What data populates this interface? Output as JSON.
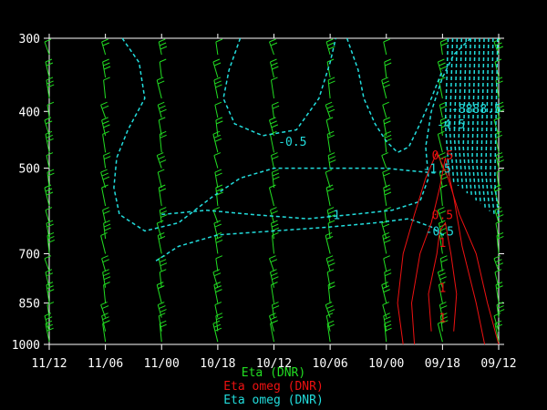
{
  "chart_data": {
    "type": "line",
    "title": "",
    "xlabel": "",
    "ylabel": "",
    "x_ticks": [
      "11/12",
      "11/06",
      "11/00",
      "10/18",
      "10/12",
      "10/06",
      "10/00",
      "09/18",
      "09/12"
    ],
    "y_ticks": [
      300,
      400,
      500,
      700,
      850,
      1000
    ],
    "y_scale": "log-pressure",
    "y_range": [
      300,
      1000
    ],
    "legend": [
      {
        "name": "Eta  (DNR)",
        "color": "#22dd22"
      },
      {
        "name": "Eta omeg (DNR)",
        "color": "#ee1111"
      },
      {
        "name": "Eta omeg (DNR)",
        "color": "#22dddd"
      }
    ],
    "contour_labels": [
      {
        "text": "-0.5",
        "x": 4.33,
        "p": 450,
        "color": "#22dddd"
      },
      {
        "text": "-1.5",
        "x": 6.9,
        "p": 500,
        "color": "#22dddd"
      },
      {
        "text": "-1",
        "x": 5.05,
        "p": 600,
        "color": "#22dddd"
      },
      {
        "text": "-0.5",
        "x": 6.95,
        "p": 640,
        "color": "#22dddd"
      },
      {
        "text": "-4.5",
        "x": 7.15,
        "p": 420,
        "color": "#22dddd"
      },
      {
        "text": "-8888.5",
        "x": 7.6,
        "p": 395,
        "color": "#22dddd"
      },
      {
        "text": "0.5",
        "x": 7.0,
        "p": 475,
        "color": "#ee1111"
      },
      {
        "text": "0.5",
        "x": 7.0,
        "p": 600,
        "color": "#ee1111"
      },
      {
        "text": "1",
        "x": 7.0,
        "p": 670,
        "color": "#ee1111"
      },
      {
        "text": "1",
        "x": 7.0,
        "p": 800,
        "color": "#ee1111"
      },
      {
        "text": "1",
        "x": 7.0,
        "p": 900,
        "color": "#ee1111"
      }
    ],
    "colors": {
      "wind": "#22dd22",
      "omeg_red": "#ee1111",
      "omeg_cyan": "#22dddd",
      "axis": "#ffffff"
    }
  }
}
